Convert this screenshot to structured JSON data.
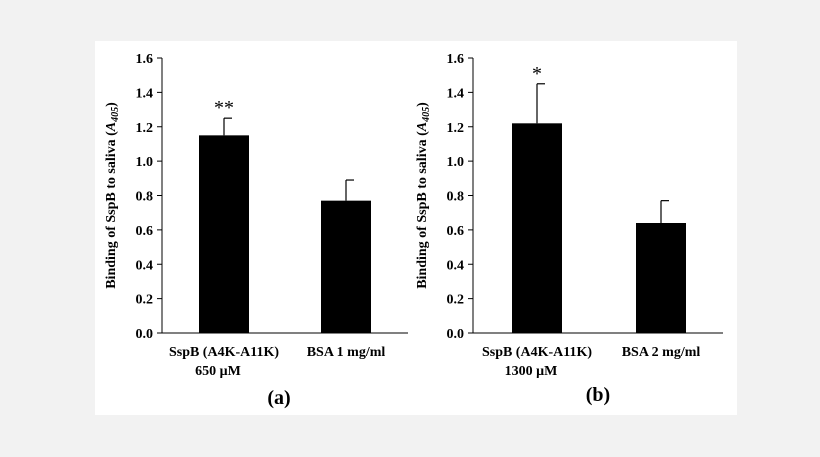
{
  "chart_data": [
    {
      "type": "bar",
      "panel_label": "(a)",
      "ylabel_main": "Binding of SspB to  saliva (",
      "ylabel_var": "A",
      "ylabel_sub": "405",
      "ylabel_close": ")",
      "ylim": [
        0,
        1.6
      ],
      "yticks": [
        "0.0",
        "0.2",
        "0.4",
        "0.6",
        "0.8",
        "1.0",
        "1.2",
        "1.4",
        "1.6"
      ],
      "categories": [
        {
          "line1": "SspB (A4K-A11K)",
          "line2": "650 μM"
        },
        {
          "line1": "BSA  1 mg/ml",
          "line2": ""
        }
      ],
      "values": [
        1.15,
        0.77
      ],
      "errors": [
        0.1,
        0.12
      ],
      "significance": [
        "**",
        ""
      ],
      "bar_color": "#000000"
    },
    {
      "type": "bar",
      "panel_label": "(b)",
      "ylabel_main": "Binding of SspB to saliva (",
      "ylabel_var": "A",
      "ylabel_sub": "405",
      "ylabel_close": ")",
      "ylim": [
        0,
        1.6
      ],
      "yticks": [
        "0.0",
        "0.2",
        "0.4",
        "0.6",
        "0.8",
        "1.0",
        "1.2",
        "1.4",
        "1.6"
      ],
      "categories": [
        {
          "line1": "SspB (A4K-A11K)",
          "line2": "1300 μM"
        },
        {
          "line1": "BSA  2 mg/ml",
          "line2": ""
        }
      ],
      "values": [
        1.22,
        0.64
      ],
      "errors": [
        0.23,
        0.13
      ],
      "significance": [
        "*",
        ""
      ],
      "bar_color": "#000000"
    }
  ]
}
